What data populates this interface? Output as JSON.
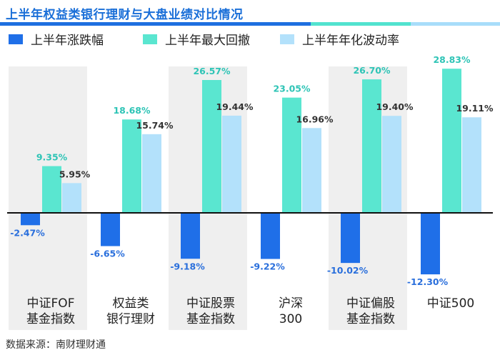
{
  "title": "上半年权益类银行理财与大盘业绩对比情况",
  "source": "数据来源：南财理财通",
  "colors": {
    "title": "#1a6fd8",
    "rule": [
      "#1e6fe0",
      "#52e3cf",
      "#a8ddfa"
    ],
    "series": [
      "#1f6fe8",
      "#5ae6d0",
      "#b3e1fb"
    ],
    "band": "#efefef",
    "value_positive": "#2ec4b6",
    "value_negative": "#2a6fdc",
    "value_third": "#333333",
    "axis": "#111111"
  },
  "chart_data": {
    "type": "bar",
    "title": "上半年权益类银行理财与大盘业绩对比情况",
    "categories": [
      [
        "中证FOF",
        "基金指数"
      ],
      [
        "权益类",
        "银行理财"
      ],
      [
        "中证股票",
        "基金指数"
      ],
      [
        "沪深",
        "300"
      ],
      [
        "中证偏股",
        "基金指数"
      ],
      [
        "中证500"
      ]
    ],
    "series": [
      {
        "name": "上半年涨跌幅",
        "values": [
          -2.47,
          -6.65,
          -9.18,
          -9.22,
          -10.02,
          -12.3
        ],
        "labels": [
          "-2.47%",
          "-6.65%",
          "-9.18%",
          "-9.22%",
          "-10.02%",
          "-12.30%"
        ]
      },
      {
        "name": "上半年最大回撤",
        "values": [
          9.35,
          18.68,
          26.57,
          23.05,
          26.7,
          28.83
        ],
        "labels": [
          "9.35%",
          "18.68%",
          "26.57%",
          "23.05%",
          "26.70%",
          "28.83%"
        ]
      },
      {
        "name": "上半年年化波动率",
        "values": [
          5.95,
          15.74,
          19.44,
          16.96,
          19.4,
          19.11
        ],
        "labels": [
          "5.95%",
          "15.74%",
          "19.44%",
          "16.96%",
          "19.40%",
          "19.11%"
        ]
      }
    ],
    "shaded_categories": [
      0,
      2,
      4
    ],
    "legend_position": "top",
    "grid": false,
    "xlabel": "",
    "ylabel": ""
  }
}
